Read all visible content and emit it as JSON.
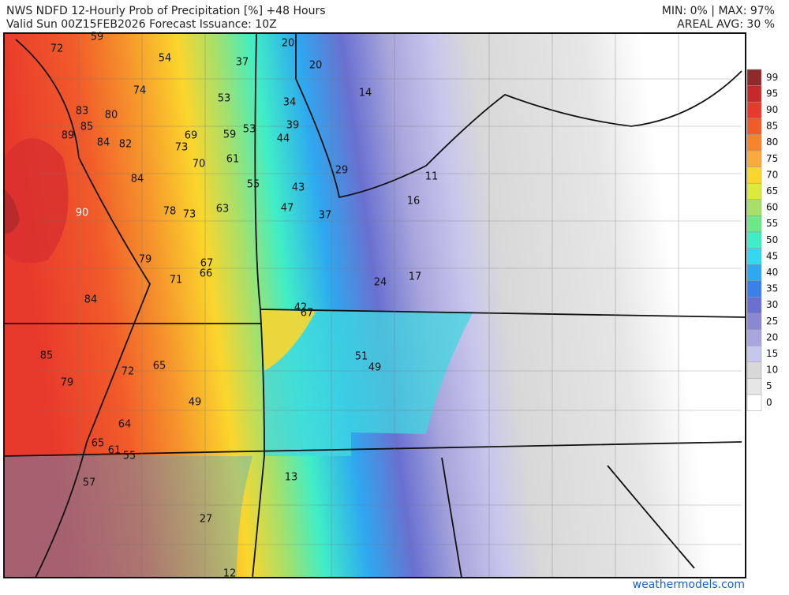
{
  "header": {
    "title": "NWS NDFD 12-Hourly Prob of Precipitation [%] +48 Hours",
    "subtitle": "Valid Sun 00Z15FEB2026   Forecast Issuance: 10Z",
    "minmax": "MIN: 0% | MAX: 97%",
    "areal_avg": "AREAL AVG: 30 %"
  },
  "legend": [
    {
      "value": 99,
      "color": "#8e2a2a"
    },
    {
      "value": 95,
      "color": "#c42a2c"
    },
    {
      "value": 90,
      "color": "#e83a2c"
    },
    {
      "value": 85,
      "color": "#f15b2a"
    },
    {
      "value": 80,
      "color": "#f5842c"
    },
    {
      "value": 75,
      "color": "#f9aa3c"
    },
    {
      "value": 70,
      "color": "#fbd62c"
    },
    {
      "value": 65,
      "color": "#dcea3c"
    },
    {
      "value": 60,
      "color": "#a6e06a"
    },
    {
      "value": 55,
      "color": "#6ce88a"
    },
    {
      "value": 50,
      "color": "#40eec6"
    },
    {
      "value": 45,
      "color": "#36d8f0"
    },
    {
      "value": 40,
      "color": "#2ea8f0"
    },
    {
      "value": 35,
      "color": "#3a80e8"
    },
    {
      "value": 30,
      "color": "#6a70d0"
    },
    {
      "value": 25,
      "color": "#8a88d0"
    },
    {
      "value": 20,
      "color": "#a8a6dc"
    },
    {
      "value": 15,
      "color": "#c8c6ec"
    },
    {
      "value": 10,
      "color": "#d8d8d8"
    },
    {
      "value": 5,
      "color": "#e6e6e6"
    },
    {
      "value": 0,
      "color": "#ffffff"
    }
  ],
  "map_values": [
    59,
    72,
    54,
    37,
    20,
    20,
    14,
    74,
    53,
    34,
    83,
    80,
    85,
    39,
    89,
    84,
    82,
    69,
    59,
    53,
    44,
    73,
    70,
    61,
    29,
    11,
    84,
    55,
    43,
    90,
    78,
    73,
    63,
    47,
    37,
    16,
    79,
    67,
    66,
    71,
    24,
    17,
    84,
    42,
    67,
    85,
    51,
    49,
    72,
    65,
    79,
    49,
    64,
    65,
    61,
    55,
    57,
    13,
    27,
    12
  ],
  "credit": "weathermodels.com"
}
